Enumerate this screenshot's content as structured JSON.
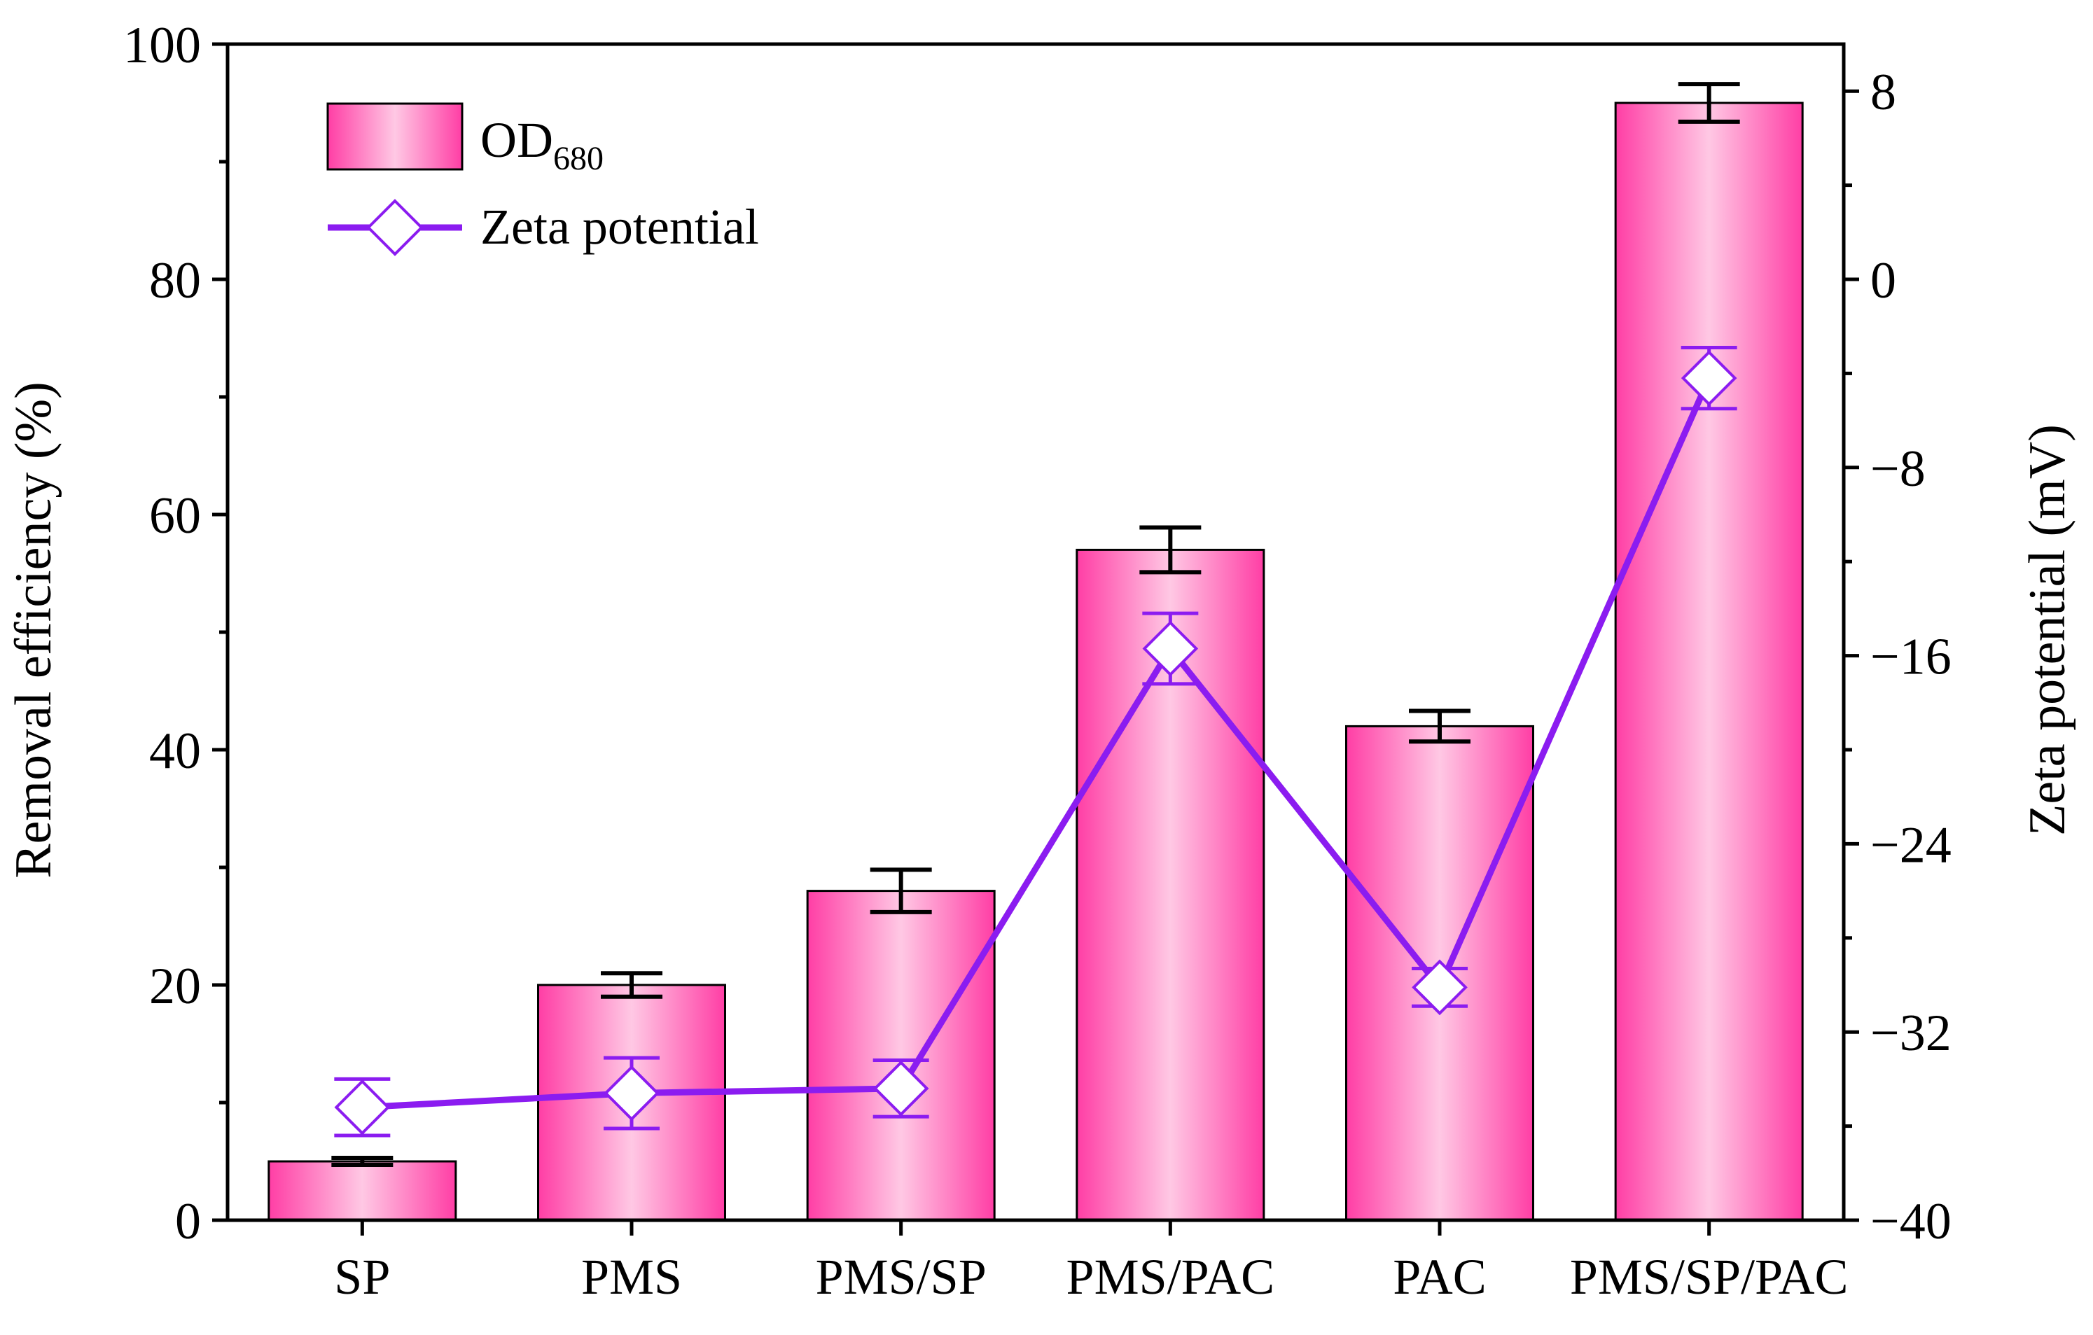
{
  "chart_data": {
    "type": "bar",
    "title": "",
    "categories": [
      "SP",
      "PMS",
      "PMS/SP",
      "PMS/PAC",
      "PAC",
      "PMS/SP/PAC"
    ],
    "xlabel": "",
    "y_left": {
      "label": "Removal efficiency (%)",
      "ylim": [
        0,
        100
      ],
      "ticks": [
        0,
        20,
        40,
        60,
        80,
        100
      ],
      "tick_labels": [
        "0",
        "20",
        "40",
        "60",
        "80",
        "100"
      ]
    },
    "y_right": {
      "label": "Zeta potential (mV)",
      "ylim": [
        -40,
        10
      ],
      "ticks": [
        -40,
        -32,
        -24,
        -16,
        -8,
        0,
        8
      ],
      "tick_labels": [
        "−40",
        "−32",
        "−24",
        "−16",
        "−8",
        "0",
        "8"
      ]
    },
    "series": [
      {
        "name": "OD",
        "name_subscript": "680",
        "kind": "bar",
        "axis": "left",
        "values": [
          5,
          20,
          28,
          57,
          42,
          95
        ],
        "errors": [
          0.3,
          1.0,
          1.8,
          1.9,
          1.3,
          1.6
        ],
        "color": "#ff3ea5"
      },
      {
        "name": "Zeta potential",
        "kind": "line",
        "axis": "right",
        "marker": "open-diamond",
        "values": [
          -35.2,
          -34.6,
          -34.4,
          -15.7,
          -30.1,
          -4.2
        ],
        "errors": [
          1.2,
          1.5,
          1.2,
          1.5,
          0.8,
          1.3
        ],
        "color": "#8b1cf0"
      }
    ],
    "legend": {
      "position": "top-left"
    }
  }
}
